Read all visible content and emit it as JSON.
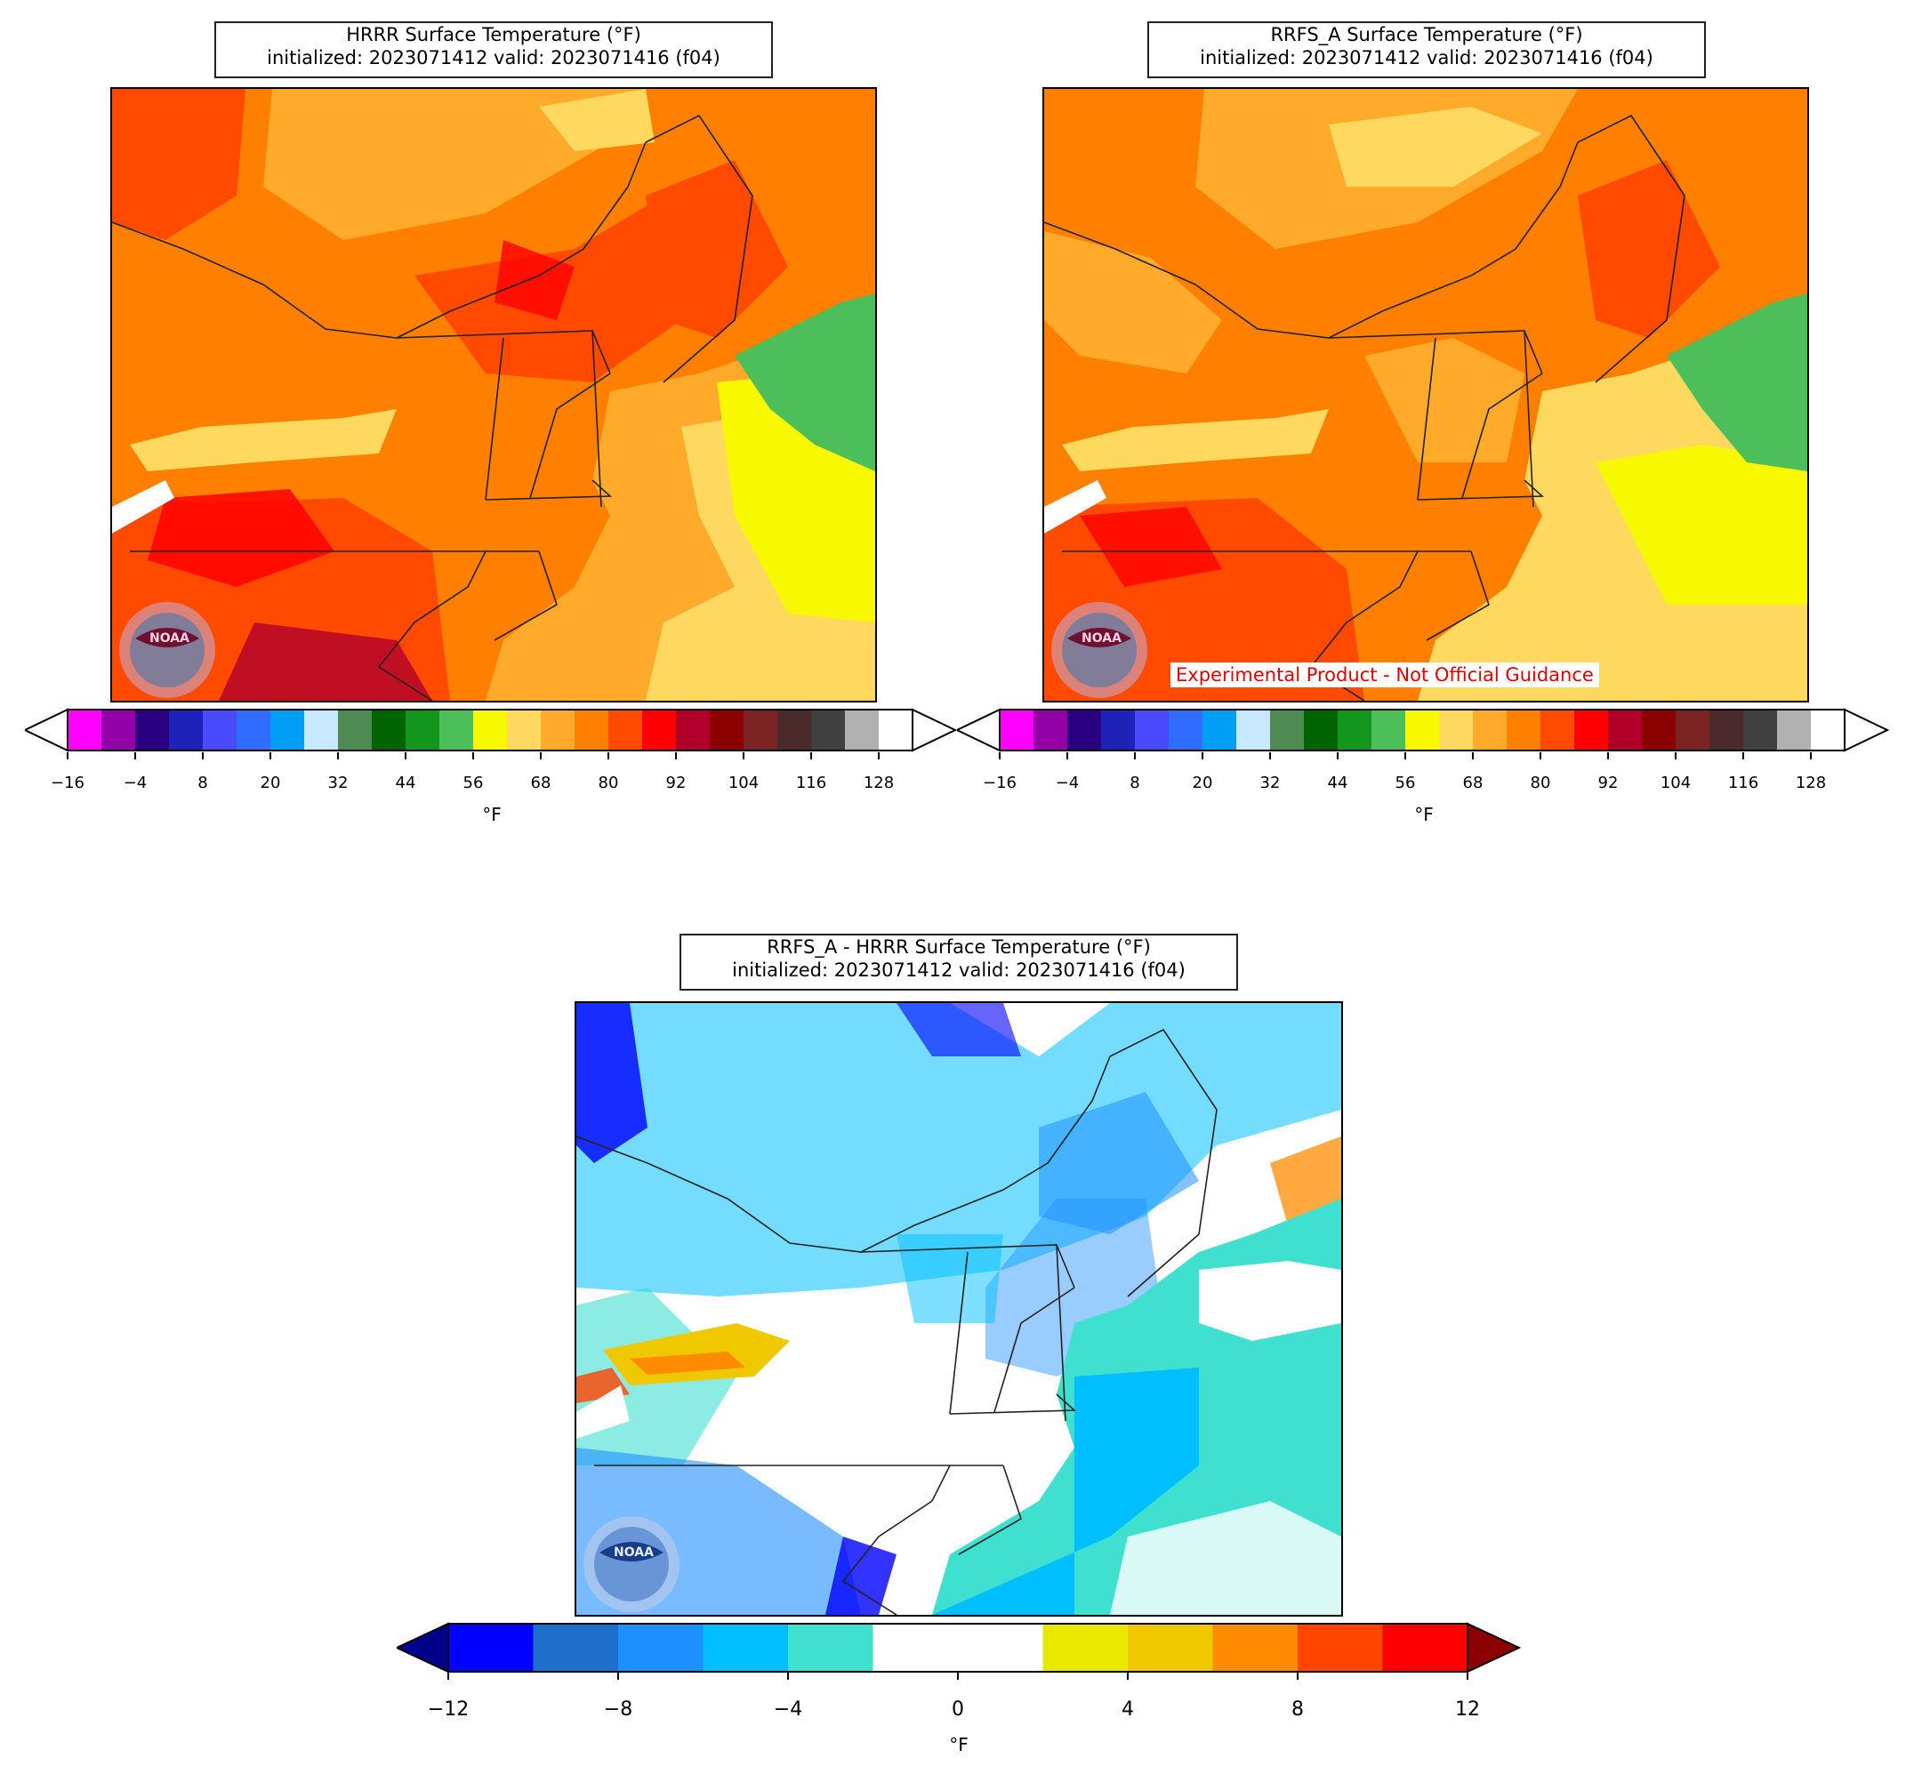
{
  "panels": {
    "hrrr": {
      "title_line1": "HRRR Surface Temperature (°F)",
      "title_line2": "initialized: 2023071412 valid: 2023071416 (f04)"
    },
    "rrfs": {
      "title_line1": "RRFS_A Surface Temperature (°F)",
      "title_line2": "initialized: 2023071412 valid: 2023071416 (f04)",
      "notice": "Experimental Product - Not Official Guidance"
    },
    "diff": {
      "title_line1": "RRFS_A - HRRR Surface Temperature (°F)",
      "title_line2": "initialized: 2023071412 valid: 2023071416 (f04)"
    }
  },
  "logo_text": "NOAA",
  "temp_colorbar": {
    "unit": "°F",
    "ticks": [
      "−16",
      "−4",
      "8",
      "20",
      "32",
      "44",
      "56",
      "68",
      "80",
      "92",
      "104",
      "116",
      "128"
    ],
    "colors": [
      "#ff00ff",
      "#9400a8",
      "#2a0080",
      "#1e22b8",
      "#4a4aff",
      "#2f6cff",
      "#009ff5",
      "#c8e8ff",
      "#4e8a52",
      "#006400",
      "#13961e",
      "#4cbe5a",
      "#f8f800",
      "#ffd860",
      "#ffaa2a",
      "#ff7f00",
      "#ff4a00",
      "#ff0000",
      "#b0002a",
      "#8a0000",
      "#7a2424",
      "#4a2a2a",
      "#404040",
      "#b0b0b0",
      "#ffffff"
    ]
  },
  "diff_colorbar": {
    "unit": "°F",
    "ticks": [
      "−12",
      "−8",
      "−4",
      "0",
      "4",
      "8",
      "12"
    ],
    "colors": [
      "#0000ff",
      "#1e6fcc",
      "#1e90ff",
      "#00bfff",
      "#40e0d0",
      "#ffffff",
      "#ffffff",
      "#e8e800",
      "#f0c800",
      "#ff8c00",
      "#ff4500",
      "#ff0000"
    ],
    "extend_low": "#00008b",
    "extend_high": "#8b0000"
  },
  "map_colors": {
    "hrrr": {
      "base": "#ff7f00",
      "warm": "#ff4a00",
      "hot": "#ff0000",
      "mild": "#ffaa2a",
      "cool": "#ffd860",
      "ocean_yellow": "#f8f800",
      "ocean_green": "#4cbe5a"
    },
    "rrfs": {
      "base": "#ff7f00",
      "warm": "#ff4a00",
      "hot": "#ff0000",
      "mild": "#ffaa2a",
      "cool": "#ffd860",
      "ocean_yellow": "#f8f800",
      "ocean_green": "#4cbe5a"
    },
    "diff": {
      "base": "#ffffff",
      "light": "#40e0d0",
      "mid": "#00bfff",
      "strong": "#1e90ff",
      "deep": "#0000ff",
      "warm": "#f0c800",
      "hot": "#ff4500"
    }
  }
}
